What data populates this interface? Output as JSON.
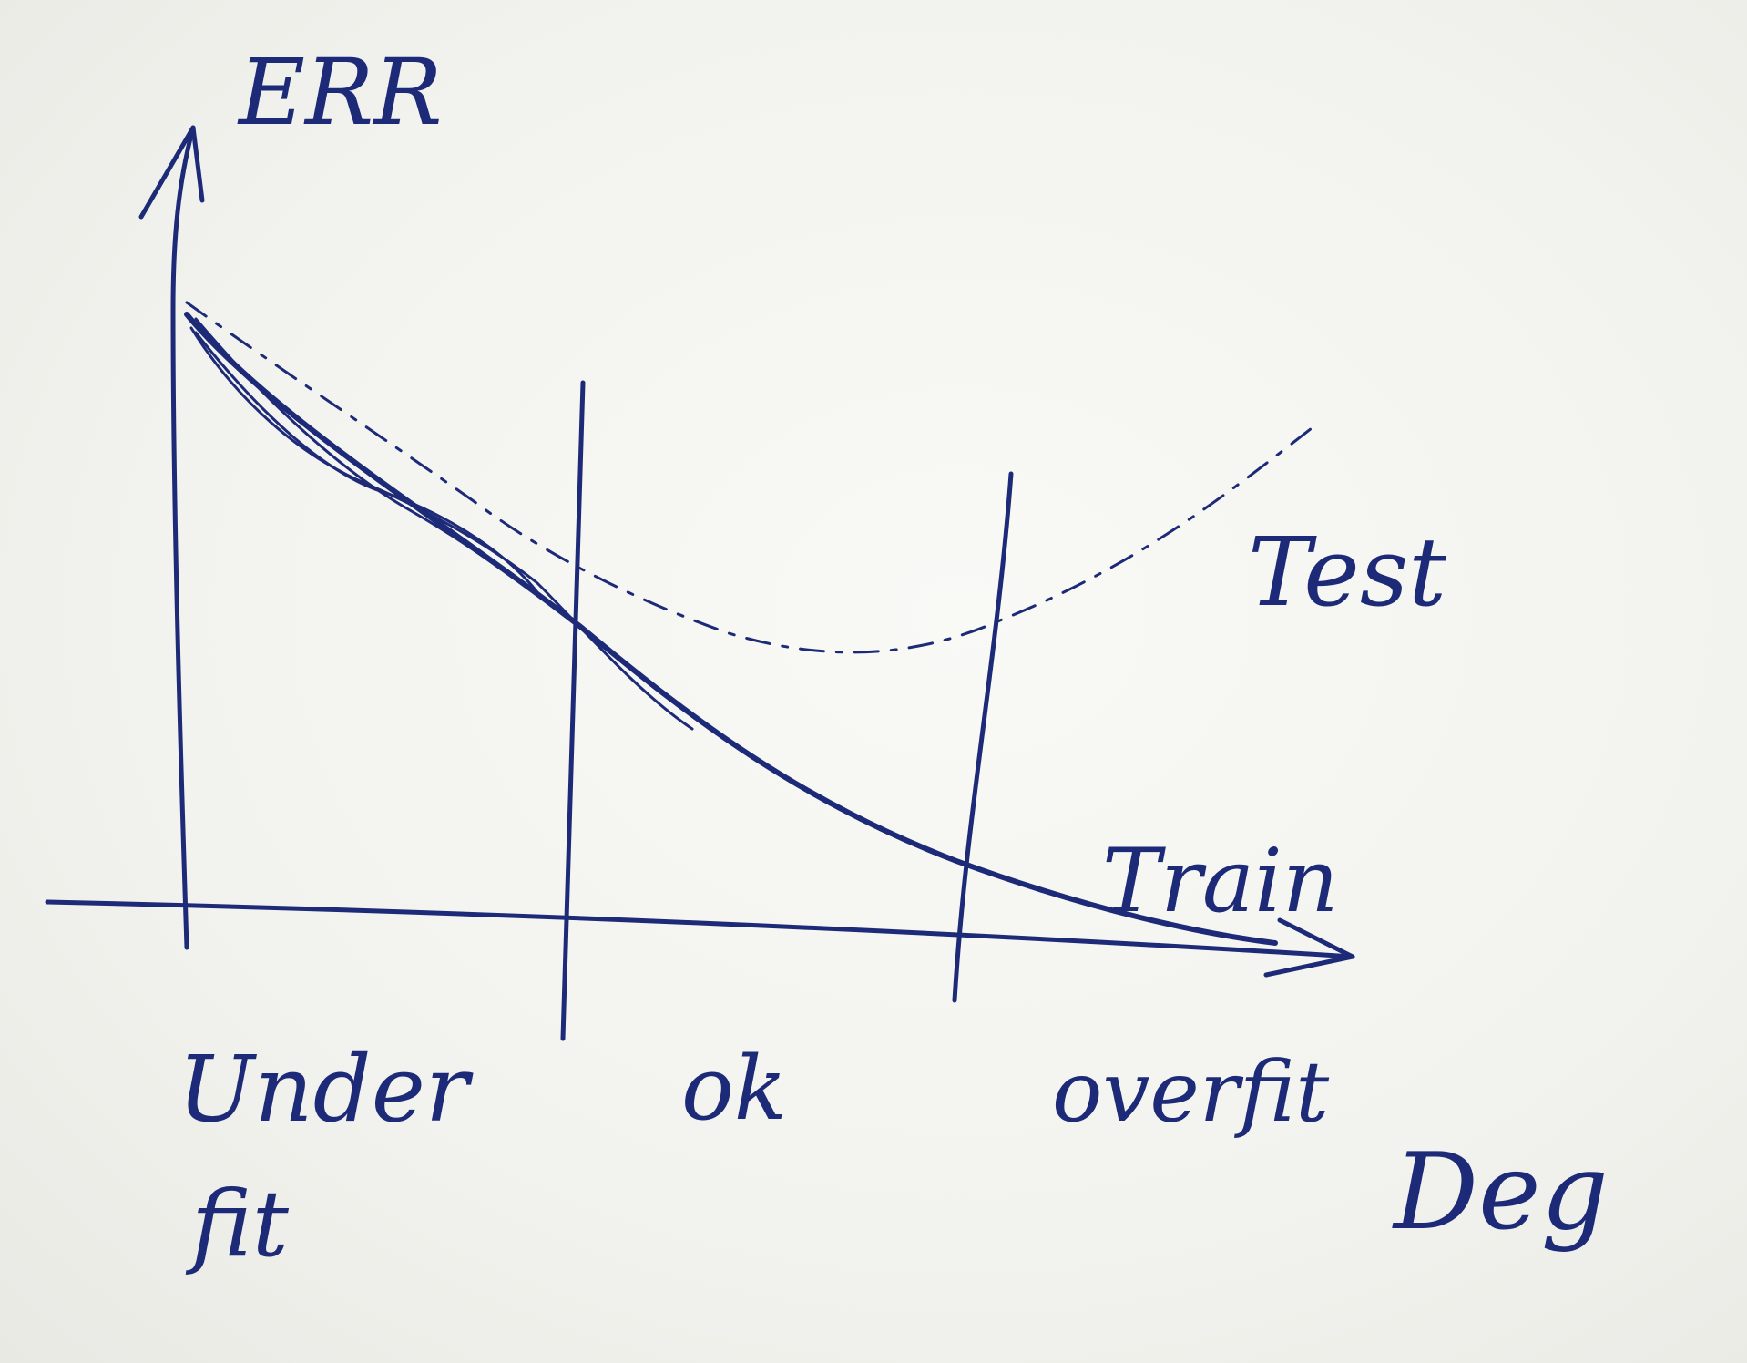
{
  "sketch": {
    "y_axis_label": "ERR",
    "x_axis_label": "Deg",
    "regions": [
      {
        "label_lines": [
          "Under",
          "fit"
        ]
      },
      {
        "label_lines": [
          "ok"
        ]
      },
      {
        "label_lines": [
          "overfit"
        ]
      }
    ],
    "curves": [
      {
        "label": "Test",
        "style": "dashed"
      },
      {
        "label": "Train",
        "style": "solid"
      }
    ],
    "ink_color": "#1d2a78",
    "paper_color": "#f4f4f0"
  }
}
